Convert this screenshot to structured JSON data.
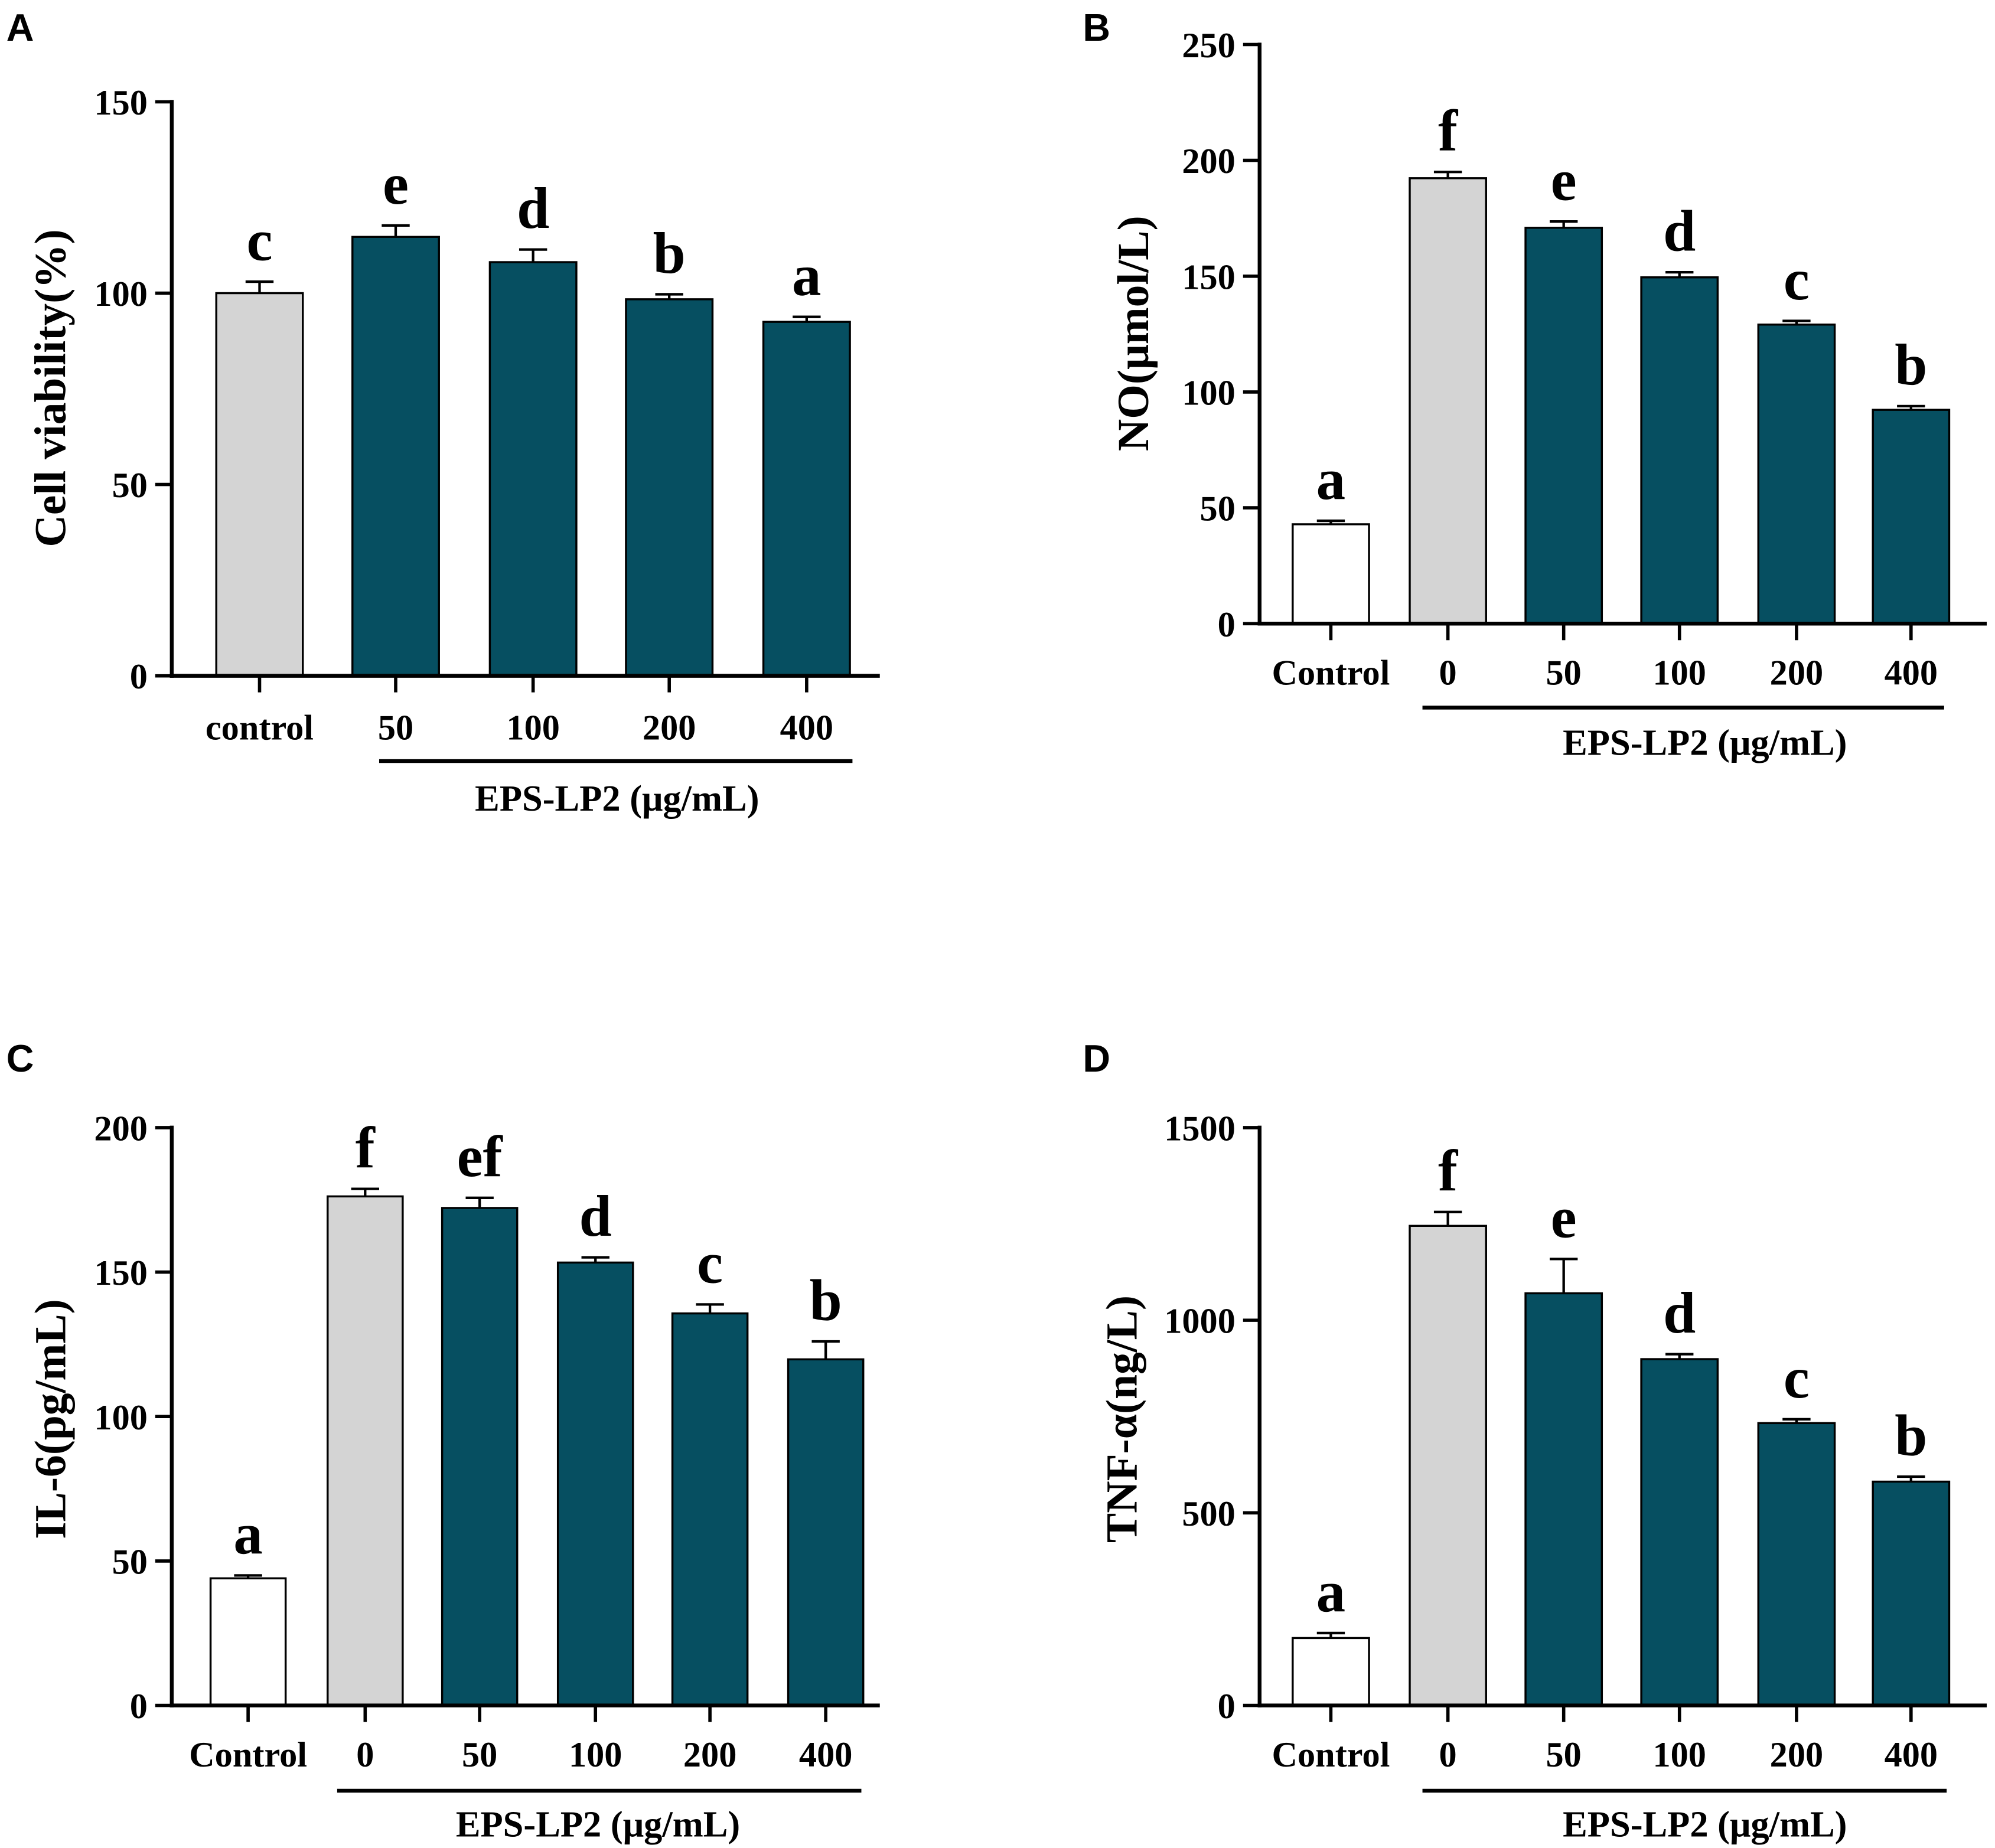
{
  "chart_data": [
    {
      "panel": "A",
      "type": "bar",
      "ylabel": "Cell viability(%)",
      "ylim": [
        0,
        150
      ],
      "yticks": [
        0,
        50,
        100,
        150
      ],
      "categories": [
        "control",
        "50",
        "100",
        "200",
        "400"
      ],
      "values": [
        100,
        114.7,
        108.1,
        98.4,
        92.5
      ],
      "errors": [
        3,
        3,
        3.3,
        1.3,
        1.3
      ],
      "letters": [
        "c",
        "e",
        "d",
        "b",
        "a"
      ],
      "bar_colors": [
        "#d4d4d4",
        "#064f61",
        "#064f61",
        "#064f61",
        "#064f61"
      ],
      "group": {
        "label": "EPS-LP2 (μg/mL)",
        "from": 1,
        "to": 4
      }
    },
    {
      "panel": "B",
      "type": "bar",
      "ylabel": "NO(μmol/L)",
      "ylim": [
        0,
        250
      ],
      "yticks": [
        0,
        50,
        100,
        150,
        200,
        250
      ],
      "categories": [
        "Control",
        "0",
        "50",
        "100",
        "200",
        "400"
      ],
      "values": [
        42.9,
        192.3,
        170.9,
        149.5,
        129.1,
        92.3
      ],
      "errors": [
        1.5,
        2.7,
        2.7,
        2.2,
        1.6,
        1.6
      ],
      "letters": [
        "a",
        "f",
        "e",
        "d",
        "c",
        "b"
      ],
      "bar_colors": [
        "#ffffff",
        "#d4d4d4",
        "#064f61",
        "#064f61",
        "#064f61",
        "#064f61"
      ],
      "group": {
        "label": "EPS-LP2 (μg/mL)",
        "from": 1,
        "to": 5
      }
    },
    {
      "panel": "C",
      "type": "bar",
      "ylabel": "IL-6(pg/mL)",
      "ylim": [
        0,
        200
      ],
      "yticks": [
        0,
        50,
        100,
        150,
        200
      ],
      "categories": [
        "Control",
        "0",
        "50",
        "100",
        "200",
        "400"
      ],
      "values": [
        44.0,
        176.2,
        172.2,
        153.3,
        135.7,
        119.8
      ],
      "errors": [
        1,
        2.6,
        3.5,
        1.8,
        3.1,
        6.2
      ],
      "letters": [
        "a",
        "f",
        "ef",
        "d",
        "c",
        "b"
      ],
      "bar_colors": [
        "#ffffff",
        "#d4d4d4",
        "#064f61",
        "#064f61",
        "#064f61",
        "#064f61"
      ],
      "group": {
        "label": "EPS-LP2 (μg/mL)",
        "from": 1,
        "to": 5
      }
    },
    {
      "panel": "D",
      "type": "bar",
      "ylabel": "TNF-α(ng/L)",
      "ylim": [
        0,
        1500
      ],
      "yticks": [
        0,
        500,
        1000,
        1500
      ],
      "categories": [
        "Control",
        "0",
        "50",
        "100",
        "200",
        "400"
      ],
      "values": [
        175,
        1245,
        1070,
        899,
        733,
        581
      ],
      "errors": [
        13,
        36,
        89,
        13,
        10,
        13
      ],
      "letters": [
        "a",
        "f",
        "e",
        "d",
        "c",
        "b"
      ],
      "bar_colors": [
        "#ffffff",
        "#d4d4d4",
        "#064f61",
        "#064f61",
        "#064f61",
        "#064f61"
      ],
      "group": {
        "label": "EPS-LP2 (μg/mL)",
        "from": 1,
        "to": 5
      }
    }
  ]
}
